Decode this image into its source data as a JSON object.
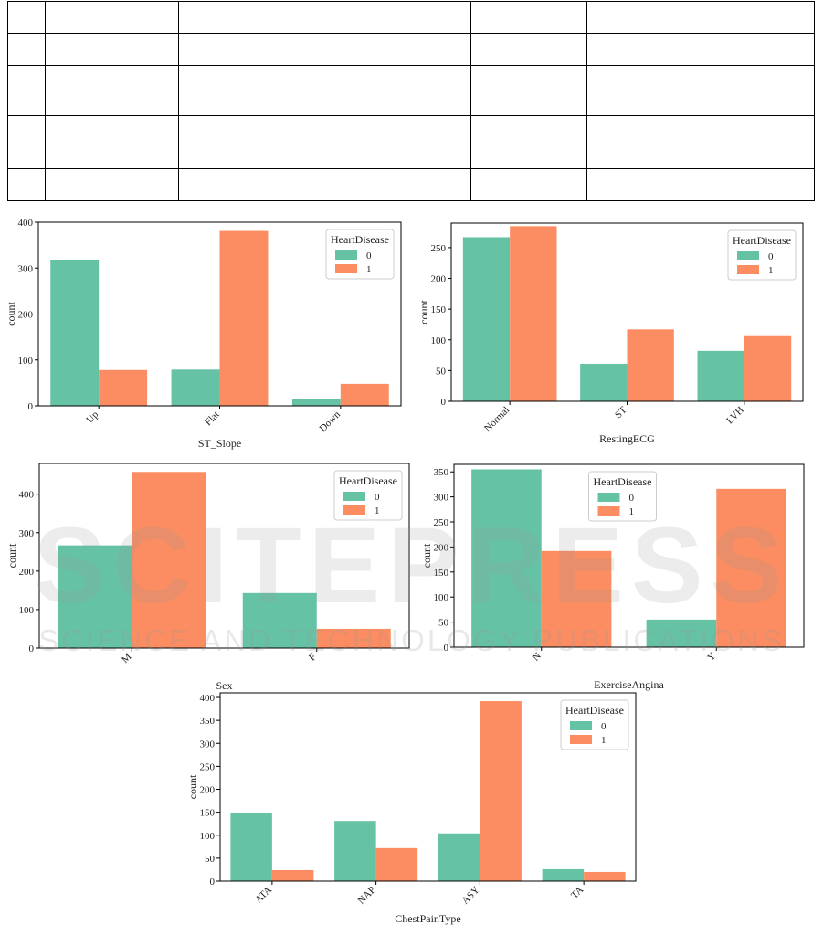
{
  "colors": {
    "class0": "#66c2a5",
    "class1": "#fc8d62"
  },
  "charts": [
    {
      "id": "st-slope",
      "chart_data": {
        "type": "bar",
        "title": "",
        "xlabel": "ST_Slope",
        "ylabel": "count",
        "categories": [
          "Up",
          "Flat",
          "Down"
        ],
        "ylim": [
          0,
          400
        ],
        "yticks": [
          0,
          100,
          200,
          300,
          400
        ],
        "legend": {
          "title": "HeartDisease",
          "position": "top-right"
        },
        "series": [
          {
            "name": "0",
            "values": [
              317,
              79,
              14
            ]
          },
          {
            "name": "1",
            "values": [
              78,
              381,
              48
            ]
          }
        ]
      }
    },
    {
      "id": "resting-ecg",
      "chart_data": {
        "type": "bar",
        "title": "",
        "xlabel": "RestingECG",
        "ylabel": "count",
        "categories": [
          "Normal",
          "ST",
          "LVH"
        ],
        "ylim": [
          0,
          290
        ],
        "yticks": [
          0,
          50,
          100,
          150,
          200,
          250
        ],
        "legend": {
          "title": "HeartDisease",
          "position": "top-right"
        },
        "series": [
          {
            "name": "0",
            "values": [
              267,
              61,
              82
            ]
          },
          {
            "name": "1",
            "values": [
              285,
              117,
              106
            ]
          }
        ]
      }
    },
    {
      "id": "sex",
      "chart_data": {
        "type": "bar",
        "title": "",
        "xlabel": "Sex",
        "ylabel": "count",
        "categories": [
          "M",
          "F"
        ],
        "ylim": [
          0,
          480
        ],
        "yticks": [
          0,
          100,
          200,
          300,
          400
        ],
        "legend": {
          "title": "HeartDisease",
          "position": "top-right"
        },
        "series": [
          {
            "name": "0",
            "values": [
              267,
              143
            ]
          },
          {
            "name": "1",
            "values": [
              458,
              50
            ]
          }
        ]
      }
    },
    {
      "id": "exercise-angina",
      "chart_data": {
        "type": "bar",
        "title": "",
        "xlabel": "ExerciseAngina",
        "ylabel": "count",
        "categories": [
          "N",
          "Y"
        ],
        "ylim": [
          0,
          365
        ],
        "yticks": [
          0,
          50,
          100,
          150,
          200,
          250,
          300,
          350
        ],
        "legend": {
          "title": "HeartDisease",
          "position": "top-center"
        },
        "series": [
          {
            "name": "0",
            "values": [
              355,
              55
            ]
          },
          {
            "name": "1",
            "values": [
              192,
              316
            ]
          }
        ]
      }
    },
    {
      "id": "chest-pain-type",
      "chart_data": {
        "type": "bar",
        "title": "",
        "xlabel": "ChestPainType",
        "ylabel": "count",
        "categories": [
          "ATA",
          "NAP",
          "ASY",
          "TA"
        ],
        "ylim": [
          0,
          410
        ],
        "yticks": [
          0,
          50,
          100,
          150,
          200,
          250,
          300,
          350,
          400
        ],
        "legend": {
          "title": "HeartDisease",
          "position": "top-right"
        },
        "series": [
          {
            "name": "0",
            "values": [
              149,
              131,
              104,
              26
            ]
          },
          {
            "name": "1",
            "values": [
              24,
              72,
              392,
              20
            ]
          }
        ]
      }
    }
  ],
  "watermark": {
    "line1": "SCITEPRESS",
    "line2": "SCIENCE AND TECHNOLOGY PUBLICATIONS"
  }
}
